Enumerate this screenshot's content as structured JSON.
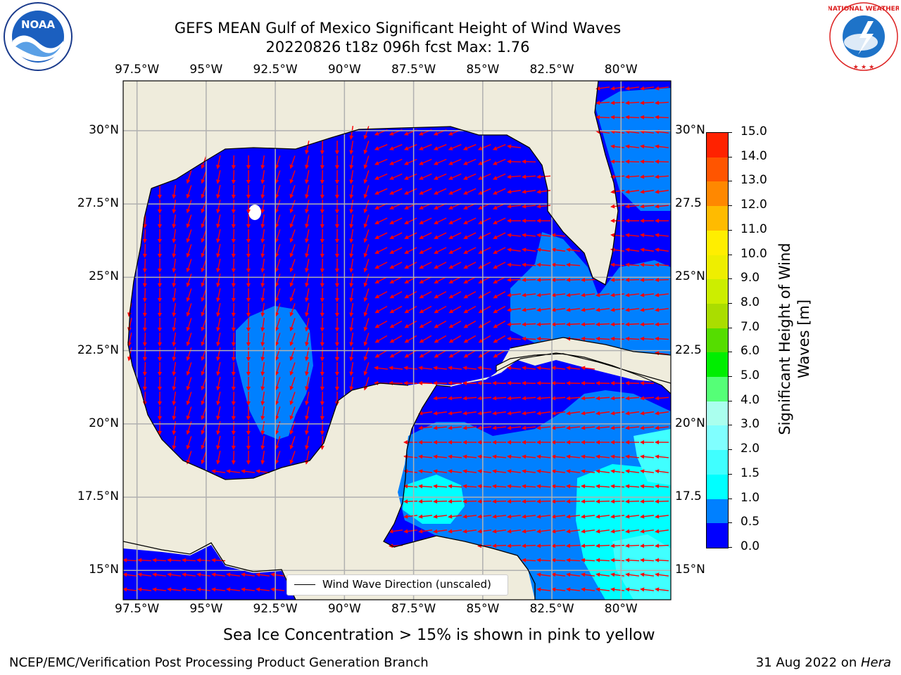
{
  "title": {
    "line1": "GEFS MEAN Gulf of Mexico Significant Height of Wind Waves",
    "line2": "20220826 t18z 096h fcst   Max: 1.76"
  },
  "map": {
    "lon_range": [
      -98.0,
      -78.2
    ],
    "lat_range": [
      14.0,
      31.7
    ],
    "lon_ticks": [
      {
        "lon": -97.5,
        "label": "97.5°W"
      },
      {
        "lon": -95.0,
        "label": "95°W"
      },
      {
        "lon": -92.5,
        "label": "92.5°W"
      },
      {
        "lon": -90.0,
        "label": "90°W"
      },
      {
        "lon": -87.5,
        "label": "87.5°W"
      },
      {
        "lon": -85.0,
        "label": "85°W"
      },
      {
        "lon": -82.5,
        "label": "82.5°W"
      },
      {
        "lon": -80.0,
        "label": "80°W"
      }
    ],
    "lat_ticks": [
      {
        "lat": 30.0,
        "label": "30°N",
        "right_label": "30°N"
      },
      {
        "lat": 27.5,
        "label": "27.5°N",
        "right_label": "27.5"
      },
      {
        "lat": 25.0,
        "label": "25°N",
        "right_label": "25°N"
      },
      {
        "lat": 22.5,
        "label": "22.5°N",
        "right_label": "22.5"
      },
      {
        "lat": 20.0,
        "label": "20°N",
        "right_label": "20°N"
      },
      {
        "lat": 17.5,
        "label": "17.5°N",
        "right_label": "17.5"
      },
      {
        "lat": 15.0,
        "label": "15°N",
        "right_label": "15°N"
      }
    ],
    "colors": {
      "land": "#efecdc",
      "ocean_lowest": "#0000ff",
      "arrow": "#ff0000",
      "coast": "#000000",
      "grid": "#b0b0b0"
    },
    "legend_label": "Wind Wave Direction (unscaled)"
  },
  "colorbar": {
    "label_line1": "Significant Height of Wind",
    "label_line2": "Waves [m]",
    "levels": [
      "0.0",
      "0.5",
      "1.0",
      "1.5",
      "2.0",
      "3.0",
      "4.0",
      "5.0",
      "6.0",
      "7.0",
      "8.0",
      "9.0",
      "10.0",
      "11.0",
      "12.0",
      "13.0",
      "14.0",
      "15.0"
    ],
    "colors": [
      "#0000ff",
      "#0080ff",
      "#00ffff",
      "#40ffff",
      "#80ffff",
      "#aaffee",
      "#55ff77",
      "#00ee00",
      "#55dd00",
      "#aadd00",
      "#ccee00",
      "#eeee00",
      "#ffee00",
      "#ffbb00",
      "#ff8800",
      "#ff5500",
      "#ff2200"
    ]
  },
  "note": "Sea Ice Concentration > 15% is shown in pink to yellow",
  "footer": {
    "left": "NCEP/EMC/Verification Post Processing Product Generation Branch",
    "date": "31 Aug 2022 on ",
    "host": "Hera"
  },
  "logos": {
    "noaa_text": "NOAA",
    "nws_text": "NATIONAL WEATHER SERVICE"
  }
}
